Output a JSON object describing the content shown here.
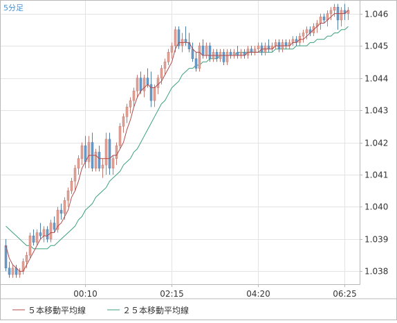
{
  "chart_data": {
    "type": "candlestick",
    "timeframe_label": "5分足",
    "x_tick_labels": [
      "00:10",
      "02:15",
      "04:20",
      "06:25"
    ],
    "x_tick_index": [
      23,
      48,
      73,
      98
    ],
    "y_ticks": [
      "1.046",
      "1.045",
      "1.044",
      "1.043",
      "1.042",
      "1.041",
      "1.040",
      "1.039",
      "1.038"
    ],
    "ylim": [
      1.0376,
      1.0464
    ],
    "grid": true,
    "colors": {
      "up": "#e0a196",
      "up_edge": "#c07a70",
      "down": "#6b9bc8",
      "down_edge": "#4d7ea8",
      "ma5": "#b04a4a",
      "ma25": "#3aa07a"
    },
    "legend": [
      {
        "label": "５本移動平均線",
        "color": "#b04a4a"
      },
      {
        "label": "２５本移動平均線",
        "color": "#3aa07a"
      }
    ],
    "ohlc": [
      [
        1.0388,
        1.039,
        1.038,
        1.0381
      ],
      [
        1.0381,
        1.0383,
        1.0378,
        1.0379
      ],
      [
        1.0379,
        1.0382,
        1.0378,
        1.0381
      ],
      [
        1.0381,
        1.0382,
        1.0378,
        1.0379
      ],
      [
        1.0379,
        1.0381,
        1.0378,
        1.038
      ],
      [
        1.038,
        1.0384,
        1.0379,
        1.0383
      ],
      [
        1.0383,
        1.0386,
        1.0381,
        1.0385
      ],
      [
        1.0385,
        1.0392,
        1.0384,
        1.0391
      ],
      [
        1.0391,
        1.0393,
        1.0388,
        1.0389
      ],
      [
        1.0389,
        1.0393,
        1.0388,
        1.0392
      ],
      [
        1.0392,
        1.0395,
        1.039,
        1.0391
      ],
      [
        1.0391,
        1.0394,
        1.0389,
        1.0393
      ],
      [
        1.0393,
        1.0394,
        1.0389,
        1.039
      ],
      [
        1.039,
        1.0396,
        1.0389,
        1.0395
      ],
      [
        1.0395,
        1.0397,
        1.0392,
        1.0393
      ],
      [
        1.0393,
        1.04,
        1.0392,
        1.0399
      ],
      [
        1.0399,
        1.0401,
        1.0396,
        1.0398
      ],
      [
        1.0398,
        1.0403,
        1.0396,
        1.0402
      ],
      [
        1.0402,
        1.0406,
        1.04,
        1.0405
      ],
      [
        1.0405,
        1.0409,
        1.0404,
        1.0408
      ],
      [
        1.0408,
        1.0413,
        1.0405,
        1.0412
      ],
      [
        1.0412,
        1.0416,
        1.041,
        1.0415
      ],
      [
        1.0415,
        1.042,
        1.0413,
        1.0419
      ],
      [
        1.0419,
        1.0422,
        1.0412,
        1.0414
      ],
      [
        1.0414,
        1.0422,
        1.0412,
        1.042
      ],
      [
        1.042,
        1.0423,
        1.0411,
        1.0412
      ],
      [
        1.0412,
        1.0418,
        1.0411,
        1.0417
      ],
      [
        1.0417,
        1.0419,
        1.0411,
        1.0412
      ],
      [
        1.0412,
        1.0415,
        1.0409,
        1.0413
      ],
      [
        1.0413,
        1.0423,
        1.041,
        1.0421
      ],
      [
        1.0421,
        1.0423,
        1.041,
        1.0412
      ],
      [
        1.0412,
        1.0416,
        1.041,
        1.0415
      ],
      [
        1.0415,
        1.042,
        1.0413,
        1.0419
      ],
      [
        1.0419,
        1.0426,
        1.0418,
        1.0425
      ],
      [
        1.0425,
        1.0429,
        1.0423,
        1.0428
      ],
      [
        1.0428,
        1.0432,
        1.0426,
        1.0431
      ],
      [
        1.0431,
        1.0434,
        1.0429,
        1.0433
      ],
      [
        1.0433,
        1.0437,
        1.0431,
        1.0436
      ],
      [
        1.0436,
        1.0441,
        1.0434,
        1.044
      ],
      [
        1.044,
        1.0442,
        1.0435,
        1.0436
      ],
      [
        1.0436,
        1.0441,
        1.0434,
        1.044
      ],
      [
        1.044,
        1.0443,
        1.0437,
        1.0438
      ],
      [
        1.0438,
        1.0442,
        1.0431,
        1.0433
      ],
      [
        1.0433,
        1.0438,
        1.0431,
        1.0437
      ],
      [
        1.0437,
        1.0441,
        1.0435,
        1.044
      ],
      [
        1.044,
        1.0444,
        1.0438,
        1.0443
      ],
      [
        1.0443,
        1.0446,
        1.0441,
        1.0445
      ],
      [
        1.0445,
        1.0449,
        1.0444,
        1.0448
      ],
      [
        1.0448,
        1.0451,
        1.0446,
        1.045
      ],
      [
        1.045,
        1.0456,
        1.0448,
        1.0455
      ],
      [
        1.0455,
        1.0456,
        1.0449,
        1.045
      ],
      [
        1.045,
        1.0454,
        1.0448,
        1.0452
      ],
      [
        1.0452,
        1.0456,
        1.045,
        1.0451
      ],
      [
        1.0451,
        1.0454,
        1.0448,
        1.0449
      ],
      [
        1.0449,
        1.0451,
        1.0445,
        1.0446
      ],
      [
        1.0446,
        1.0448,
        1.0442,
        1.0443
      ],
      [
        1.0443,
        1.0451,
        1.0442,
        1.045
      ],
      [
        1.045,
        1.0452,
        1.0446,
        1.0447
      ],
      [
        1.0447,
        1.0451,
        1.0446,
        1.045
      ],
      [
        1.045,
        1.0451,
        1.0445,
        1.0446
      ],
      [
        1.0446,
        1.0449,
        1.0445,
        1.0448
      ],
      [
        1.0448,
        1.0449,
        1.0445,
        1.0446
      ],
      [
        1.0446,
        1.0449,
        1.0445,
        1.0448
      ],
      [
        1.0448,
        1.0449,
        1.0444,
        1.0445
      ],
      [
        1.0445,
        1.0449,
        1.0444,
        1.0448
      ],
      [
        1.0448,
        1.0449,
        1.0446,
        1.0447
      ],
      [
        1.0447,
        1.0449,
        1.0446,
        1.0448
      ],
      [
        1.0448,
        1.045,
        1.0446,
        1.0447
      ],
      [
        1.0447,
        1.0449,
        1.0446,
        1.0448
      ],
      [
        1.0448,
        1.0449,
        1.0446,
        1.0447
      ],
      [
        1.0447,
        1.045,
        1.0446,
        1.0449
      ],
      [
        1.0449,
        1.045,
        1.0447,
        1.0448
      ],
      [
        1.0448,
        1.045,
        1.0447,
        1.0449
      ],
      [
        1.0449,
        1.0451,
        1.0448,
        1.045
      ],
      [
        1.045,
        1.0451,
        1.0447,
        1.0448
      ],
      [
        1.0448,
        1.0451,
        1.0447,
        1.045
      ],
      [
        1.045,
        1.0452,
        1.0448,
        1.0449
      ],
      [
        1.0449,
        1.0451,
        1.0448,
        1.045
      ],
      [
        1.045,
        1.0452,
        1.0449,
        1.0451
      ],
      [
        1.0451,
        1.0452,
        1.0448,
        1.0449
      ],
      [
        1.0449,
        1.0452,
        1.0448,
        1.0451
      ],
      [
        1.0451,
        1.0452,
        1.0449,
        1.045
      ],
      [
        1.045,
        1.0452,
        1.0449,
        1.0451
      ],
      [
        1.0451,
        1.0453,
        1.045,
        1.0452
      ],
      [
        1.0452,
        1.0453,
        1.045,
        1.0451
      ],
      [
        1.0451,
        1.0454,
        1.045,
        1.0453
      ],
      [
        1.0453,
        1.0455,
        1.0451,
        1.0454
      ],
      [
        1.0454,
        1.0456,
        1.0452,
        1.0455
      ],
      [
        1.0455,
        1.0456,
        1.0453,
        1.0454
      ],
      [
        1.0454,
        1.0457,
        1.0453,
        1.0456
      ],
      [
        1.0456,
        1.0458,
        1.0454,
        1.0457
      ],
      [
        1.0457,
        1.046,
        1.0455,
        1.0459
      ],
      [
        1.0459,
        1.046,
        1.0457,
        1.0458
      ],
      [
        1.0458,
        1.0461,
        1.0456,
        1.046
      ],
      [
        1.046,
        1.0462,
        1.0458,
        1.0461
      ],
      [
        1.0461,
        1.0463,
        1.0459,
        1.0462
      ],
      [
        1.0462,
        1.0463,
        1.0455,
        1.0458
      ],
      [
        1.0458,
        1.0462,
        1.0456,
        1.0461
      ],
      [
        1.0461,
        1.0463,
        1.0458,
        1.046
      ],
      [
        1.046,
        1.0462,
        1.0458,
        1.0461
      ]
    ],
    "ma5": [
      1.0388,
      1.0384,
      1.0382,
      1.0381,
      1.038,
      1.038,
      1.0382,
      1.0384,
      1.0386,
      1.0388,
      1.039,
      1.0391,
      1.0391,
      1.0392,
      1.0392,
      1.0394,
      1.0395,
      1.0397,
      1.0399,
      1.0403,
      1.0405,
      1.0408,
      1.0412,
      1.0414,
      1.0416,
      1.0416,
      1.0416,
      1.0415,
      1.0415,
      1.0415,
      1.0415,
      1.0416,
      1.0416,
      1.0418,
      1.042,
      1.0424,
      1.0427,
      1.0431,
      1.0434,
      1.0436,
      1.0437,
      1.0438,
      1.0437,
      1.0437,
      1.0438,
      1.0439,
      1.0441,
      1.0443,
      1.0445,
      1.0449,
      1.0451,
      1.0451,
      1.0451,
      1.0451,
      1.0449,
      1.0448,
      1.0448,
      1.0447,
      1.0447,
      1.0447,
      1.0447,
      1.0447,
      1.0447,
      1.0447,
      1.0447,
      1.0447,
      1.0447,
      1.0447,
      1.0447,
      1.0447,
      1.0448,
      1.0448,
      1.0448,
      1.0448,
      1.0449,
      1.0449,
      1.0449,
      1.0449,
      1.045,
      1.045,
      1.045,
      1.045,
      1.045,
      1.0451,
      1.0451,
      1.0452,
      1.0452,
      1.0453,
      1.0454,
      1.0455,
      1.0456,
      1.0457,
      1.0457,
      1.0458,
      1.0459,
      1.046,
      1.046,
      1.046,
      1.046,
      1.0461
    ],
    "ma25": [
      1.0394,
      1.0393,
      1.0392,
      1.0391,
      1.039,
      1.0389,
      1.0388,
      1.0388,
      1.0387,
      1.0387,
      1.0387,
      1.0387,
      1.0387,
      1.0388,
      1.0388,
      1.0389,
      1.039,
      1.0391,
      1.0392,
      1.0393,
      1.0394,
      1.0396,
      1.0397,
      1.0399,
      1.04,
      1.0401,
      1.0403,
      1.0404,
      1.0405,
      1.0406,
      1.0408,
      1.0409,
      1.041,
      1.0411,
      1.0413,
      1.0414,
      1.0415,
      1.0417,
      1.0418,
      1.042,
      1.0422,
      1.0424,
      1.0426,
      1.0428,
      1.043,
      1.0432,
      1.0433,
      1.0435,
      1.0437,
      1.0438,
      1.0439,
      1.0441,
      1.0442,
      1.0443,
      1.0443,
      1.0444,
      1.0444,
      1.0445,
      1.0445,
      1.0446,
      1.0446,
      1.0446,
      1.0447,
      1.0447,
      1.0447,
      1.0447,
      1.0447,
      1.0448,
      1.0448,
      1.0448,
      1.0448,
      1.0448,
      1.0448,
      1.0448,
      1.0448,
      1.0448,
      1.0448,
      1.0448,
      1.0449,
      1.0449,
      1.0449,
      1.0449,
      1.0449,
      1.0449,
      1.045,
      1.045,
      1.045,
      1.045,
      1.0451,
      1.0451,
      1.0452,
      1.0452,
      1.0452,
      1.0453,
      1.0453,
      1.0454,
      1.0454,
      1.0455,
      1.0455,
      1.0456
    ]
  }
}
